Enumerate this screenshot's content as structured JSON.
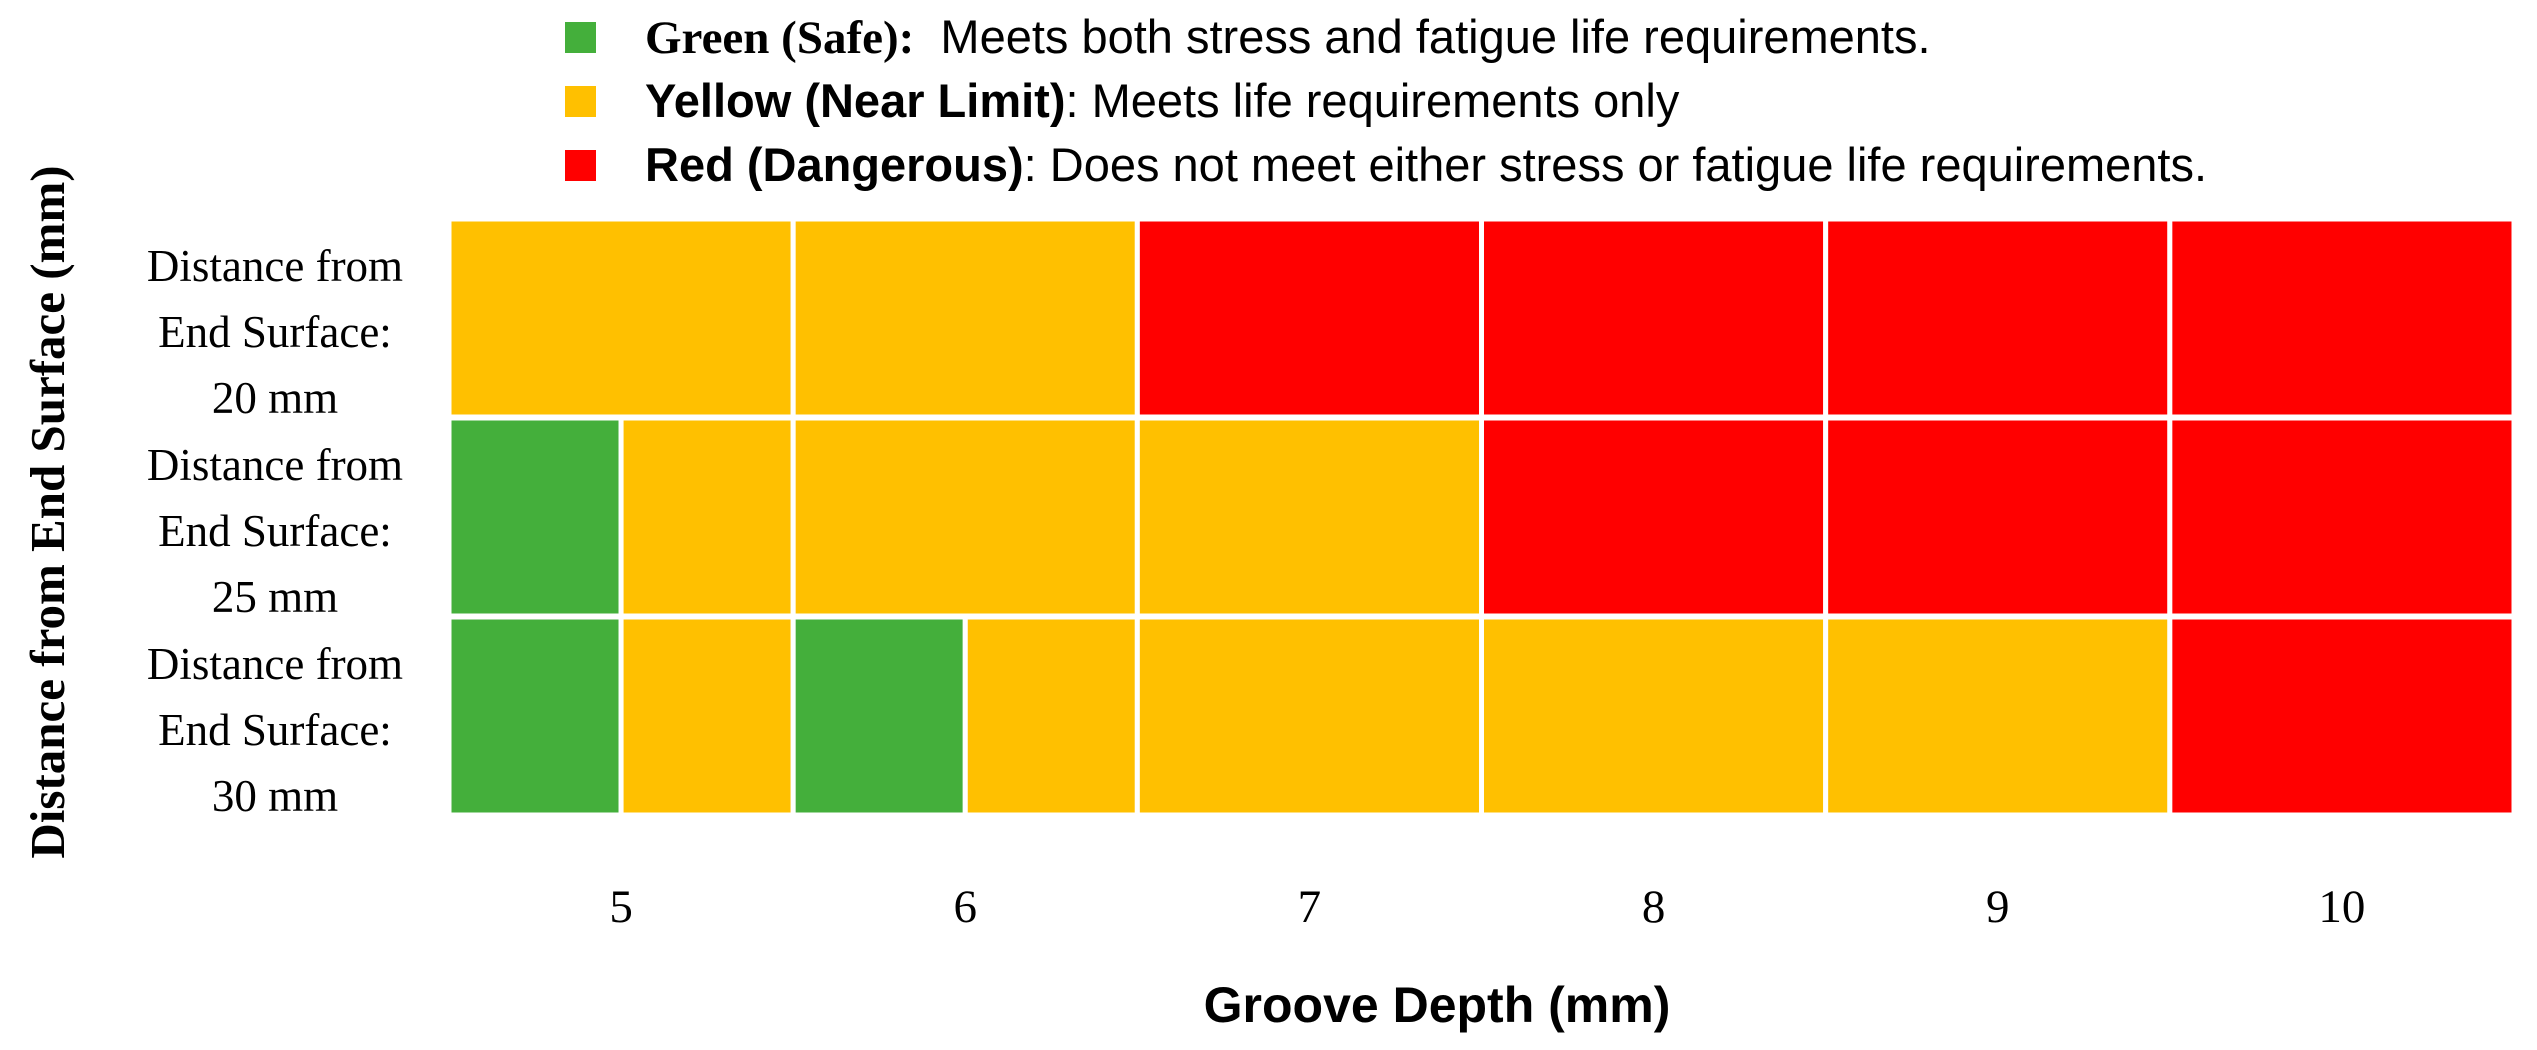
{
  "chart_data": {
    "type": "heatmap",
    "title": "",
    "xlabel": "Groove Depth (mm)",
    "ylabel": "Distance from End Surface (mm)",
    "x_ticks": [
      "5",
      "6",
      "7",
      "8",
      "9",
      "10"
    ],
    "x_range": [
      4.5,
      10.5
    ],
    "rows": [
      {
        "label": [
          "Distance from",
          "End Surface:",
          "20 mm"
        ],
        "cells": [
          {
            "from": 4.5,
            "to": 5.5,
            "status": "yellow"
          },
          {
            "from": 5.5,
            "to": 6.5,
            "status": "yellow"
          },
          {
            "from": 6.5,
            "to": 7.5,
            "status": "red"
          },
          {
            "from": 7.5,
            "to": 8.5,
            "status": "red"
          },
          {
            "from": 8.5,
            "to": 9.5,
            "status": "red"
          },
          {
            "from": 9.5,
            "to": 10.5,
            "status": "red"
          }
        ]
      },
      {
        "label": [
          "Distance from",
          "End Surface:",
          "25 mm"
        ],
        "cells": [
          {
            "from": 4.5,
            "to": 5.0,
            "status": "green"
          },
          {
            "from": 5.0,
            "to": 5.5,
            "status": "yellow"
          },
          {
            "from": 5.5,
            "to": 6.5,
            "status": "yellow"
          },
          {
            "from": 6.5,
            "to": 7.5,
            "status": "yellow"
          },
          {
            "from": 7.5,
            "to": 8.5,
            "status": "red"
          },
          {
            "from": 8.5,
            "to": 9.5,
            "status": "red"
          },
          {
            "from": 9.5,
            "to": 10.5,
            "status": "red"
          }
        ]
      },
      {
        "label": [
          "Distance from",
          "End Surface:",
          "30 mm"
        ],
        "cells": [
          {
            "from": 4.5,
            "to": 5.0,
            "status": "green"
          },
          {
            "from": 5.0,
            "to": 5.5,
            "status": "yellow"
          },
          {
            "from": 5.5,
            "to": 6.0,
            "status": "green"
          },
          {
            "from": 6.0,
            "to": 6.5,
            "status": "yellow"
          },
          {
            "from": 6.5,
            "to": 7.5,
            "status": "yellow"
          },
          {
            "from": 7.5,
            "to": 8.5,
            "status": "yellow"
          },
          {
            "from": 8.5,
            "to": 9.5,
            "status": "yellow"
          },
          {
            "from": 9.5,
            "to": 10.5,
            "status": "red"
          }
        ]
      }
    ],
    "legend": [
      {
        "key": "green",
        "bold_label": "Green (Safe):",
        "desc": "  Meets both stress and fatigue life requirements.",
        "color": "#44AF3B"
      },
      {
        "key": "yellow",
        "bold_label": "Yellow (Near Limit)",
        "desc": ": Meets life requirements only",
        "color": "#FFC000"
      },
      {
        "key": "red",
        "bold_label": "Red (Dangerous)",
        "desc": ": Does not meet either stress or fatigue life requirements.",
        "color": "#FF0000"
      }
    ],
    "legend_placement": "top",
    "grid": false
  }
}
